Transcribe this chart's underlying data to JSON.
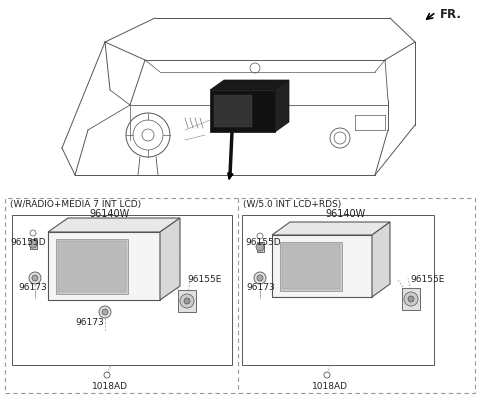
{
  "bg_color": "#ffffff",
  "line_color": "#555555",
  "dash_color": "#999999",
  "text_color": "#222222",
  "fr_label": "FR.",
  "box1_label": "(W/RADIO+MEDIA 7 INT LCD)",
  "box2_label": "(W/5.0 INT LCD+RDS)",
  "part_96140W": "96140W",
  "part_96155D": "96155D",
  "part_96155E": "96155E",
  "part_96173": "96173",
  "part_1018AD": "1018AD",
  "figsize": [
    4.8,
    4.03
  ],
  "dpi": 100
}
